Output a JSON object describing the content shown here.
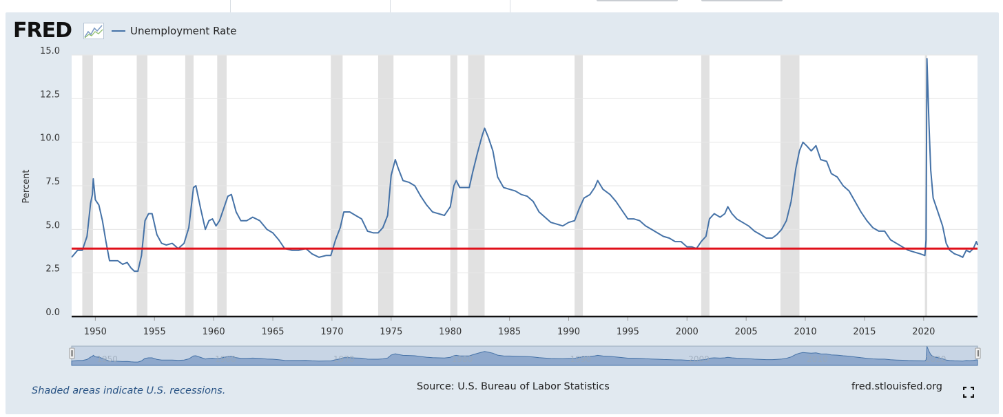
{
  "header": {
    "logo_text": "FRED",
    "legend_label": "Unemployment Rate"
  },
  "footer": {
    "recession_note": "Shaded areas indicate U.S. recessions.",
    "source": "Source: U.S. Bureau of Labor Statistics",
    "site": "fred.stlouisfed.org"
  },
  "colors": {
    "series": "#4572a7",
    "reference_line": "#e0101a",
    "recession_shade": "#e1e1e1",
    "frame": "#e1e9f0"
  },
  "icons": [
    "fred-logo-chart-icon",
    "fullscreen-icon",
    "navigator-handle-icon"
  ],
  "chart_data": {
    "type": "line",
    "title": "",
    "xlabel": "",
    "ylabel": "Percent",
    "xlim": [
      1948.0,
      2024.55
    ],
    "ylim": [
      0,
      15
    ],
    "y_ticks": [
      "0.0",
      "2.5",
      "5.0",
      "7.5",
      "10.0",
      "12.5",
      "15.0"
    ],
    "x_ticks": [
      "1950",
      "1955",
      "1960",
      "1965",
      "1970",
      "1975",
      "1980",
      "1985",
      "1990",
      "1995",
      "2000",
      "2005",
      "2010",
      "2015",
      "2020"
    ],
    "grid": true,
    "legend_position": "top-left",
    "reference_line": {
      "y": 3.9
    },
    "recessions": [
      [
        1948.9,
        1949.8
      ],
      [
        1953.5,
        1954.4
      ],
      [
        1957.6,
        1958.3
      ],
      [
        1960.3,
        1961.1
      ],
      [
        1969.9,
        1970.9
      ],
      [
        1973.9,
        1975.2
      ],
      [
        1980.0,
        1980.6
      ],
      [
        1981.5,
        1982.9
      ],
      [
        1990.5,
        1991.2
      ],
      [
        2001.2,
        2001.9
      ],
      [
        2007.9,
        2009.5
      ],
      [
        2020.1,
        2020.3
      ]
    ],
    "navigator_labels": [
      "1950",
      "1960",
      "1970",
      "1980",
      "1990",
      "2000",
      "2010",
      "2020"
    ],
    "series": [
      {
        "name": "Unemployment Rate",
        "points": [
          [
            1948.0,
            3.4
          ],
          [
            1948.5,
            3.8
          ],
          [
            1948.9,
            3.8
          ],
          [
            1949.3,
            4.6
          ],
          [
            1949.6,
            6.5
          ],
          [
            1949.75,
            7.0
          ],
          [
            1949.83,
            7.9
          ],
          [
            1950.0,
            6.7
          ],
          [
            1950.3,
            6.4
          ],
          [
            1950.6,
            5.5
          ],
          [
            1950.9,
            4.3
          ],
          [
            1951.2,
            3.2
          ],
          [
            1951.5,
            3.2
          ],
          [
            1951.9,
            3.2
          ],
          [
            1952.3,
            3.0
          ],
          [
            1952.7,
            3.1
          ],
          [
            1953.0,
            2.8
          ],
          [
            1953.3,
            2.6
          ],
          [
            1953.6,
            2.6
          ],
          [
            1953.9,
            3.5
          ],
          [
            1954.2,
            5.5
          ],
          [
            1954.5,
            5.9
          ],
          [
            1954.8,
            5.9
          ],
          [
            1955.2,
            4.7
          ],
          [
            1955.6,
            4.2
          ],
          [
            1956.0,
            4.1
          ],
          [
            1956.5,
            4.2
          ],
          [
            1957.0,
            3.9
          ],
          [
            1957.5,
            4.2
          ],
          [
            1957.9,
            5.1
          ],
          [
            1958.3,
            7.4
          ],
          [
            1958.5,
            7.5
          ],
          [
            1958.9,
            6.2
          ],
          [
            1959.3,
            5.0
          ],
          [
            1959.6,
            5.5
          ],
          [
            1959.9,
            5.6
          ],
          [
            1960.2,
            5.2
          ],
          [
            1960.5,
            5.5
          ],
          [
            1960.9,
            6.3
          ],
          [
            1961.2,
            6.9
          ],
          [
            1961.5,
            7.0
          ],
          [
            1961.9,
            6.0
          ],
          [
            1962.3,
            5.5
          ],
          [
            1962.8,
            5.5
          ],
          [
            1963.3,
            5.7
          ],
          [
            1963.9,
            5.5
          ],
          [
            1964.5,
            5.0
          ],
          [
            1965.0,
            4.8
          ],
          [
            1965.5,
            4.4
          ],
          [
            1966.0,
            3.9
          ],
          [
            1966.6,
            3.8
          ],
          [
            1967.2,
            3.8
          ],
          [
            1967.8,
            3.9
          ],
          [
            1968.3,
            3.6
          ],
          [
            1968.9,
            3.4
          ],
          [
            1969.5,
            3.5
          ],
          [
            1969.9,
            3.5
          ],
          [
            1970.3,
            4.4
          ],
          [
            1970.7,
            5.1
          ],
          [
            1971.0,
            6.0
          ],
          [
            1971.5,
            6.0
          ],
          [
            1972.0,
            5.8
          ],
          [
            1972.5,
            5.6
          ],
          [
            1973.0,
            4.9
          ],
          [
            1973.5,
            4.8
          ],
          [
            1973.9,
            4.8
          ],
          [
            1974.3,
            5.1
          ],
          [
            1974.7,
            5.8
          ],
          [
            1975.0,
            8.1
          ],
          [
            1975.35,
            9.0
          ],
          [
            1975.6,
            8.5
          ],
          [
            1976.0,
            7.8
          ],
          [
            1976.5,
            7.7
          ],
          [
            1977.0,
            7.5
          ],
          [
            1977.5,
            6.9
          ],
          [
            1978.0,
            6.4
          ],
          [
            1978.5,
            6.0
          ],
          [
            1979.0,
            5.9
          ],
          [
            1979.5,
            5.8
          ],
          [
            1980.0,
            6.3
          ],
          [
            1980.3,
            7.5
          ],
          [
            1980.5,
            7.8
          ],
          [
            1980.8,
            7.4
          ],
          [
            1981.2,
            7.4
          ],
          [
            1981.6,
            7.4
          ],
          [
            1981.9,
            8.3
          ],
          [
            1982.3,
            9.4
          ],
          [
            1982.7,
            10.4
          ],
          [
            1982.9,
            10.8
          ],
          [
            1983.2,
            10.3
          ],
          [
            1983.6,
            9.5
          ],
          [
            1984.0,
            8.0
          ],
          [
            1984.5,
            7.4
          ],
          [
            1985.0,
            7.3
          ],
          [
            1985.5,
            7.2
          ],
          [
            1986.0,
            7.0
          ],
          [
            1986.5,
            6.9
          ],
          [
            1987.0,
            6.6
          ],
          [
            1987.5,
            6.0
          ],
          [
            1988.0,
            5.7
          ],
          [
            1988.5,
            5.4
          ],
          [
            1989.0,
            5.3
          ],
          [
            1989.5,
            5.2
          ],
          [
            1990.0,
            5.4
          ],
          [
            1990.5,
            5.5
          ],
          [
            1990.9,
            6.2
          ],
          [
            1991.3,
            6.8
          ],
          [
            1991.8,
            7.0
          ],
          [
            1992.2,
            7.4
          ],
          [
            1992.45,
            7.8
          ],
          [
            1992.9,
            7.3
          ],
          [
            1993.5,
            7.0
          ],
          [
            1994.0,
            6.6
          ],
          [
            1994.5,
            6.1
          ],
          [
            1995.0,
            5.6
          ],
          [
            1995.5,
            5.6
          ],
          [
            1996.0,
            5.5
          ],
          [
            1996.5,
            5.2
          ],
          [
            1997.0,
            5.0
          ],
          [
            1997.5,
            4.8
          ],
          [
            1998.0,
            4.6
          ],
          [
            1998.5,
            4.5
          ],
          [
            1999.0,
            4.3
          ],
          [
            1999.5,
            4.3
          ],
          [
            2000.0,
            4.0
          ],
          [
            2000.4,
            4.0
          ],
          [
            2000.8,
            3.9
          ],
          [
            2001.2,
            4.3
          ],
          [
            2001.6,
            4.6
          ],
          [
            2001.9,
            5.6
          ],
          [
            2002.3,
            5.9
          ],
          [
            2002.8,
            5.7
          ],
          [
            2003.2,
            5.9
          ],
          [
            2003.45,
            6.3
          ],
          [
            2003.8,
            5.9
          ],
          [
            2004.2,
            5.6
          ],
          [
            2004.7,
            5.4
          ],
          [
            2005.2,
            5.2
          ],
          [
            2005.7,
            4.9
          ],
          [
            2006.2,
            4.7
          ],
          [
            2006.7,
            4.5
          ],
          [
            2007.2,
            4.5
          ],
          [
            2007.6,
            4.7
          ],
          [
            2008.0,
            5.0
          ],
          [
            2008.4,
            5.5
          ],
          [
            2008.8,
            6.6
          ],
          [
            2009.2,
            8.5
          ],
          [
            2009.5,
            9.5
          ],
          [
            2009.8,
            10.0
          ],
          [
            2010.1,
            9.8
          ],
          [
            2010.5,
            9.5
          ],
          [
            2010.9,
            9.8
          ],
          [
            2011.3,
            9.0
          ],
          [
            2011.8,
            8.9
          ],
          [
            2012.2,
            8.2
          ],
          [
            2012.7,
            8.0
          ],
          [
            2013.2,
            7.5
          ],
          [
            2013.7,
            7.2
          ],
          [
            2014.2,
            6.6
          ],
          [
            2014.7,
            6.0
          ],
          [
            2015.2,
            5.5
          ],
          [
            2015.7,
            5.1
          ],
          [
            2016.2,
            4.9
          ],
          [
            2016.7,
            4.9
          ],
          [
            2017.2,
            4.4
          ],
          [
            2017.7,
            4.2
          ],
          [
            2018.2,
            4.0
          ],
          [
            2018.7,
            3.8
          ],
          [
            2019.2,
            3.7
          ],
          [
            2019.7,
            3.6
          ],
          [
            2020.1,
            3.5
          ],
          [
            2020.2,
            4.4
          ],
          [
            2020.28,
            14.8
          ],
          [
            2020.45,
            11.0
          ],
          [
            2020.6,
            8.4
          ],
          [
            2020.8,
            6.8
          ],
          [
            2021.2,
            6.0
          ],
          [
            2021.6,
            5.2
          ],
          [
            2021.9,
            4.2
          ],
          [
            2022.2,
            3.8
          ],
          [
            2022.6,
            3.6
          ],
          [
            2023.0,
            3.5
          ],
          [
            2023.3,
            3.4
          ],
          [
            2023.6,
            3.8
          ],
          [
            2023.9,
            3.7
          ],
          [
            2024.2,
            3.9
          ],
          [
            2024.45,
            4.3
          ],
          [
            2024.55,
            4.1
          ]
        ]
      }
    ]
  }
}
